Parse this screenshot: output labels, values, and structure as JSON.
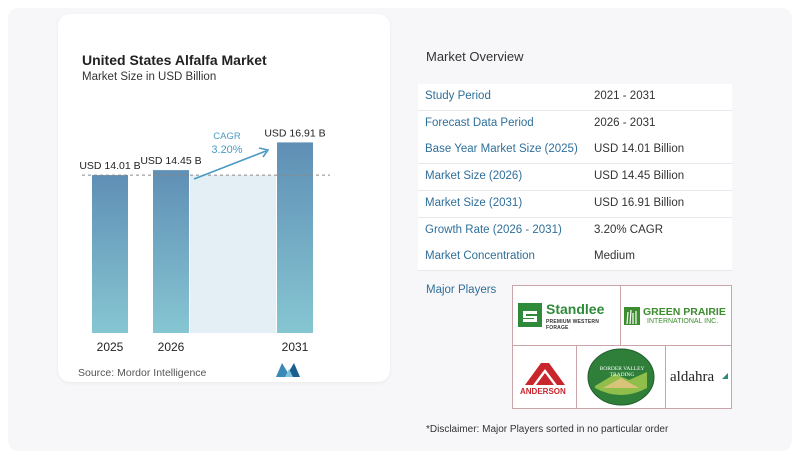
{
  "chart_data": {
    "type": "bar",
    "title": "United States Alfalfa Market",
    "subtitle": "Market Size in USD Billion",
    "categories": [
      "2025",
      "2026",
      "2031"
    ],
    "values": [
      14.01,
      14.45,
      16.91
    ],
    "data_labels": [
      "USD 14.01 B",
      "USD 14.45 B",
      "USD 16.91 B"
    ],
    "annotation": {
      "label": "CAGR",
      "value": "3.20%"
    },
    "xlabel": "",
    "ylabel": "",
    "grid": false,
    "bar_color": "#5f8fb5",
    "bar_gradient_end": "#86c6d2"
  },
  "source": "Source: Mordor Intelligence",
  "overview": {
    "title": "Market Overview",
    "rows": [
      {
        "key": "Study Period",
        "value": "2021 - 2031"
      },
      {
        "key": "Forecast Data Period",
        "value": "2026 - 2031"
      },
      {
        "key": "Base Year Market Size (2025)",
        "value": "USD 14.01 Billion"
      },
      {
        "key": "Market Size (2026)",
        "value": "USD 14.45 Billion"
      },
      {
        "key": "Market Size (2031)",
        "value": "USD 16.91 Billion"
      },
      {
        "key": "Growth Rate (2026 - 2031)",
        "value": "3.20% CAGR"
      },
      {
        "key": "Market Concentration",
        "value": "Medium"
      }
    ]
  },
  "players": {
    "label": "Major Players",
    "logos": {
      "standlee": {
        "name": "Standlee",
        "tagline": "PREMIUM WESTERN FORAGE"
      },
      "green_prairie": {
        "name": "GREEN PRAIRIE",
        "sub": "INTERNATIONAL INC."
      },
      "anderson": {
        "name": "ANDERSON"
      },
      "border_valley": {
        "name": "BORDER VALLEY TRADING"
      },
      "aldahra": {
        "name": "aldahra"
      }
    }
  },
  "disclaimer": "*Disclaimer: Major Players sorted in no particular order",
  "colors": {
    "accent": "#2f6f9a",
    "bar_top": "#5f8fb5",
    "bar_bottom": "#86c6d2",
    "arrow": "#4a9bc4"
  }
}
